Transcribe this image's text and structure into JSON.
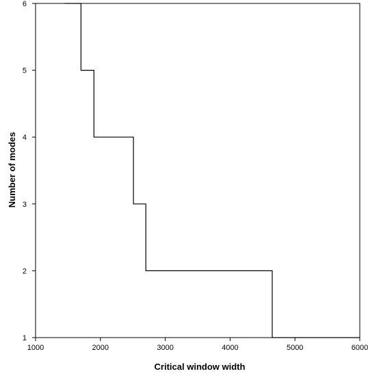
{
  "chart_data": {
    "type": "line",
    "title": "",
    "xlabel": "Critical window width",
    "ylabel": "Number of modes",
    "xlim": [
      1000,
      6000
    ],
    "ylim": [
      1,
      6
    ],
    "x_ticks": [
      1000,
      2000,
      3000,
      4000,
      5000,
      6000
    ],
    "y_ticks": [
      1,
      2,
      3,
      4,
      5,
      6
    ],
    "grid": false,
    "legend": "none",
    "line_color": "#000000",
    "step": true,
    "series": [
      {
        "x": [
          1450,
          1700,
          1700,
          1900,
          1900,
          2510,
          2510,
          2700,
          2700,
          4650,
          4650,
          6000
        ],
        "y": [
          6,
          6,
          5,
          5,
          4,
          4,
          3,
          3,
          2,
          2,
          1,
          1
        ]
      }
    ]
  }
}
